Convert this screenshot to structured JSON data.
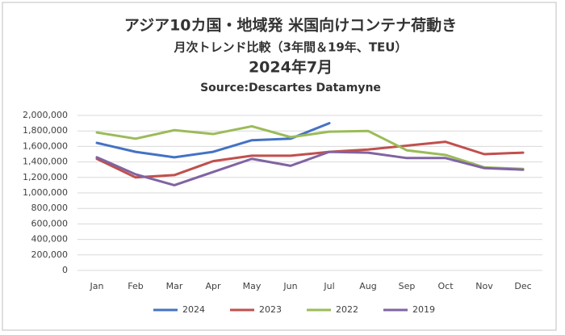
{
  "chart_data": {
    "type": "line",
    "title": "アジア10カ国・地域発 米国向けコンテナ荷動き",
    "subtitle": "月次トレンド比較（3年間＆19年、TEU）",
    "period": "2024年7月",
    "source": "Source:Descartes Datamyne",
    "categories": [
      "Jan",
      "Feb",
      "Mar",
      "Apr",
      "May",
      "Jun",
      "Jul",
      "Aug",
      "Sep",
      "Oct",
      "Nov",
      "Dec"
    ],
    "series": [
      {
        "name": "2024",
        "color": "#4472c4",
        "values": [
          1646000,
          1530000,
          1460000,
          1530000,
          1680000,
          1700000,
          1900000,
          null,
          null,
          null,
          null,
          null
        ]
      },
      {
        "name": "2023",
        "color": "#c0504d",
        "values": [
          1440000,
          1200000,
          1230000,
          1410000,
          1480000,
          1480000,
          1530000,
          1560000,
          1610000,
          1660000,
          1500000,
          1520000
        ]
      },
      {
        "name": "2022",
        "color": "#9bbb59",
        "values": [
          1780000,
          1700000,
          1810000,
          1760000,
          1860000,
          1720000,
          1790000,
          1800000,
          1550000,
          1490000,
          1330000,
          1310000
        ]
      },
      {
        "name": "2019",
        "color": "#8064a2",
        "values": [
          1460000,
          1240000,
          1100000,
          1270000,
          1440000,
          1350000,
          1530000,
          1520000,
          1450000,
          1450000,
          1320000,
          1300000
        ]
      }
    ],
    "ylim": [
      0,
      2000000
    ],
    "yticks": [
      0,
      {
        "value": 200000,
        "label": "200,000"
      },
      {
        "value": 400000,
        "label": "400,000"
      },
      {
        "value": 600000,
        "label": "600,000"
      },
      {
        "value": 800000,
        "label": "800,000"
      },
      {
        "value": 1000000,
        "label": "1,000,000"
      },
      {
        "value": 1200000,
        "label": "1,200,000"
      },
      {
        "value": 1400000,
        "label": "1,400,000"
      },
      {
        "value": 1600000,
        "label": "1,600,000"
      },
      {
        "value": 1800000,
        "label": "1,800,000"
      },
      {
        "value": 2000000,
        "label": "2,000,000"
      }
    ],
    "grid": true,
    "legend": "bottom"
  }
}
